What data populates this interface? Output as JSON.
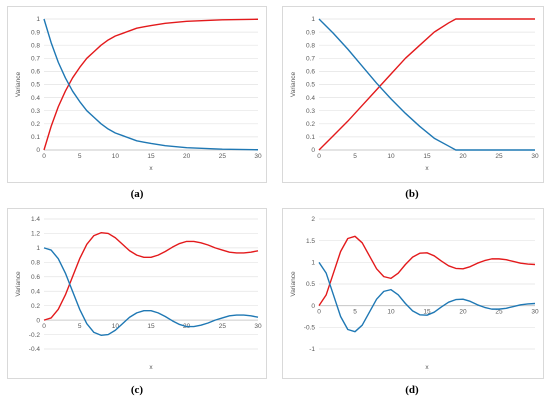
{
  "chart_data": [
    {
      "type": "line",
      "caption": "(a)",
      "xlabel": "x",
      "ylabel": "Variance",
      "xlim": [
        0,
        30
      ],
      "ylim": [
        0,
        1
      ],
      "xticks": [
        0,
        5,
        10,
        15,
        20,
        25,
        30
      ],
      "yticks": [
        0,
        0.1,
        0.2,
        0.3,
        0.4,
        0.5,
        0.6,
        0.7,
        0.8,
        0.9,
        1
      ],
      "ytick_labels": [
        "0",
        "0.1",
        "0.2",
        "0.3",
        "0.4",
        "0.5",
        "0.6",
        "0.7",
        "0.8",
        "0.9",
        "1"
      ],
      "grid": true,
      "series": [
        {
          "color": "#e31a1c",
          "x": [
            0,
            1,
            2,
            3,
            4,
            5,
            6,
            7,
            8,
            9,
            10,
            11,
            12,
            13,
            14,
            15,
            17,
            20,
            25,
            30
          ],
          "y": [
            0,
            0.18,
            0.33,
            0.45,
            0.55,
            0.63,
            0.7,
            0.75,
            0.8,
            0.84,
            0.87,
            0.89,
            0.91,
            0.93,
            0.94,
            0.95,
            0.967,
            0.982,
            0.994,
            0.998
          ]
        },
        {
          "color": "#1f78b4",
          "x": [
            0,
            1,
            2,
            3,
            4,
            5,
            6,
            7,
            8,
            9,
            10,
            11,
            12,
            13,
            14,
            15,
            17,
            20,
            25,
            30
          ],
          "y": [
            1,
            0.82,
            0.67,
            0.55,
            0.45,
            0.37,
            0.3,
            0.25,
            0.2,
            0.16,
            0.13,
            0.11,
            0.09,
            0.07,
            0.06,
            0.05,
            0.033,
            0.018,
            0.006,
            0.002
          ]
        }
      ]
    },
    {
      "type": "line",
      "caption": "(b)",
      "xlabel": "x",
      "ylabel": "Variance",
      "xlim": [
        0,
        30
      ],
      "ylim": [
        0,
        1
      ],
      "xticks": [
        0,
        5,
        10,
        15,
        20,
        25,
        30
      ],
      "yticks": [
        0,
        0.1,
        0.2,
        0.3,
        0.4,
        0.5,
        0.6,
        0.7,
        0.8,
        0.9,
        1
      ],
      "ytick_labels": [
        "0",
        "0.1",
        "0.2",
        "0.3",
        "0.4",
        "0.5",
        "0.6",
        "0.7",
        "0.8",
        "0.9",
        "1"
      ],
      "grid": true,
      "series": [
        {
          "color": "#e31a1c",
          "x": [
            0,
            2,
            4,
            6,
            8,
            10,
            12,
            14,
            16,
            18,
            19,
            20,
            25,
            30
          ],
          "y": [
            0,
            0.11,
            0.22,
            0.34,
            0.46,
            0.58,
            0.7,
            0.8,
            0.9,
            0.97,
            1,
            1,
            1,
            1
          ]
        },
        {
          "color": "#1f78b4",
          "x": [
            0,
            2,
            4,
            6,
            8,
            10,
            12,
            14,
            16,
            18,
            19,
            20,
            25,
            30
          ],
          "y": [
            1,
            0.89,
            0.77,
            0.64,
            0.51,
            0.39,
            0.28,
            0.18,
            0.09,
            0.03,
            0,
            0,
            0,
            0
          ]
        }
      ]
    },
    {
      "type": "line",
      "caption": "(c)",
      "xlabel": "x",
      "ylabel": "Variance",
      "xlim": [
        0,
        30
      ],
      "ylim": [
        -0.4,
        1.4
      ],
      "xticks": [
        0,
        5,
        10,
        15,
        20,
        25,
        30
      ],
      "yticks": [
        -0.4,
        -0.2,
        0,
        0.2,
        0.4,
        0.6,
        0.8,
        1,
        1.2,
        1.4
      ],
      "ytick_labels": [
        "-0.4",
        "-0.2",
        "0",
        "0.2",
        "0.4",
        "0.6",
        "0.8",
        "1",
        "1.2",
        "1.4"
      ],
      "grid": true,
      "series": [
        {
          "color": "#e31a1c",
          "x": [
            0,
            1,
            2,
            3,
            4,
            5,
            6,
            7,
            8,
            9,
            10,
            11,
            12,
            13,
            14,
            15,
            16,
            17,
            18,
            19,
            20,
            21,
            22,
            23,
            24,
            25,
            26,
            27,
            28,
            29,
            30
          ],
          "y": [
            0,
            0.03,
            0.15,
            0.35,
            0.6,
            0.85,
            1.05,
            1.17,
            1.21,
            1.2,
            1.14,
            1.05,
            0.96,
            0.9,
            0.87,
            0.87,
            0.9,
            0.95,
            1.01,
            1.06,
            1.09,
            1.09,
            1.07,
            1.04,
            1.0,
            0.97,
            0.94,
            0.93,
            0.93,
            0.94,
            0.96
          ]
        },
        {
          "color": "#1f78b4",
          "x": [
            0,
            1,
            2,
            3,
            4,
            5,
            6,
            7,
            8,
            9,
            10,
            11,
            12,
            13,
            14,
            15,
            16,
            17,
            18,
            19,
            20,
            21,
            22,
            23,
            24,
            25,
            26,
            27,
            28,
            29,
            30
          ],
          "y": [
            1,
            0.97,
            0.85,
            0.65,
            0.4,
            0.15,
            -0.05,
            -0.17,
            -0.21,
            -0.2,
            -0.14,
            -0.05,
            0.04,
            0.1,
            0.13,
            0.13,
            0.1,
            0.05,
            -0.01,
            -0.06,
            -0.09,
            -0.09,
            -0.07,
            -0.04,
            0.0,
            0.03,
            0.06,
            0.07,
            0.07,
            0.06,
            0.04
          ]
        }
      ]
    },
    {
      "type": "line",
      "caption": "(d)",
      "xlabel": "x",
      "ylabel": "Variance",
      "xlim": [
        0,
        30
      ],
      "ylim": [
        -1,
        2
      ],
      "xticks": [
        0,
        5,
        10,
        15,
        20,
        25,
        30
      ],
      "yticks": [
        -1,
        -0.5,
        0,
        0.5,
        1,
        1.5,
        2
      ],
      "ytick_labels": [
        "-1",
        "-0.5",
        "0",
        "0.5",
        "1",
        "1.5",
        "2"
      ],
      "grid": true,
      "series": [
        {
          "color": "#e31a1c",
          "x": [
            0,
            1,
            2,
            3,
            4,
            5,
            6,
            7,
            8,
            9,
            10,
            11,
            12,
            13,
            14,
            15,
            16,
            17,
            18,
            19,
            20,
            21,
            22,
            23,
            24,
            25,
            26,
            27,
            28,
            29,
            30
          ],
          "y": [
            0,
            0.25,
            0.75,
            1.25,
            1.55,
            1.6,
            1.45,
            1.15,
            0.85,
            0.67,
            0.63,
            0.75,
            0.95,
            1.12,
            1.21,
            1.22,
            1.15,
            1.03,
            0.92,
            0.86,
            0.85,
            0.9,
            0.98,
            1.04,
            1.08,
            1.08,
            1.06,
            1.02,
            0.98,
            0.96,
            0.95
          ]
        },
        {
          "color": "#1f78b4",
          "x": [
            0,
            1,
            2,
            3,
            4,
            5,
            6,
            7,
            8,
            9,
            10,
            11,
            12,
            13,
            14,
            15,
            16,
            17,
            18,
            19,
            20,
            21,
            22,
            23,
            24,
            25,
            26,
            27,
            28,
            29,
            30
          ],
          "y": [
            1,
            0.75,
            0.25,
            -0.25,
            -0.55,
            -0.6,
            -0.45,
            -0.15,
            0.15,
            0.33,
            0.37,
            0.25,
            0.05,
            -0.12,
            -0.21,
            -0.22,
            -0.15,
            -0.03,
            0.08,
            0.14,
            0.15,
            0.1,
            0.02,
            -0.04,
            -0.08,
            -0.08,
            -0.06,
            -0.02,
            0.02,
            0.04,
            0.05
          ]
        }
      ]
    }
  ]
}
